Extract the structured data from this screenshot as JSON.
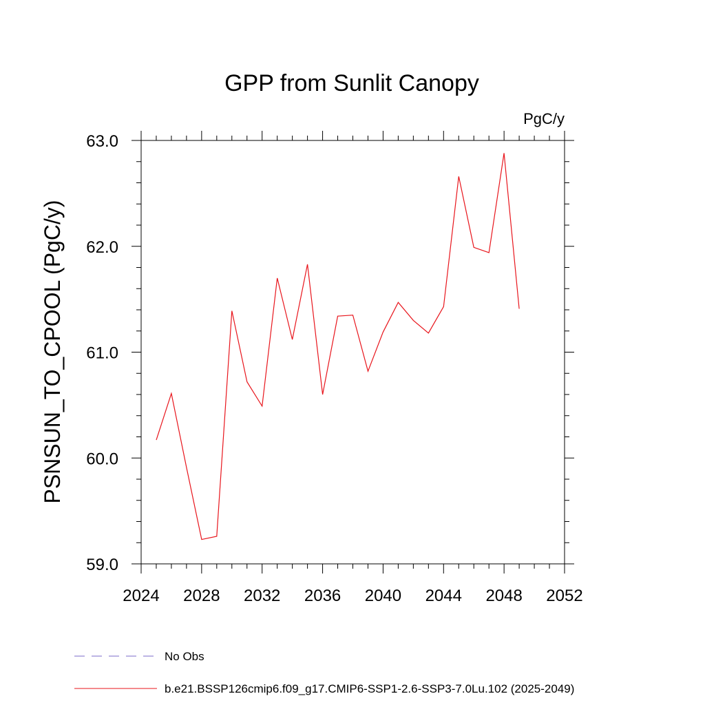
{
  "chart_data": {
    "type": "line",
    "title": "GPP from Sunlit Canopy",
    "units": "PgC/y",
    "ylabel": "PSNSUN_TO_CPOOL  (PgC/y)",
    "xlabel": "",
    "xlim": [
      2024,
      2052
    ],
    "ylim": [
      59.0,
      63.0
    ],
    "x_ticks": [
      "2024",
      "2028",
      "2032",
      "2036",
      "2040",
      "2044",
      "2048",
      "2052"
    ],
    "y_ticks": [
      "59.0",
      "60.0",
      "61.0",
      "62.0",
      "63.0"
    ],
    "grid": false,
    "legend_position": "bottom",
    "legend": [
      {
        "label": "No Obs",
        "color": "#7b68c8",
        "style": "dashed"
      },
      {
        "label": "b.e21.BSSP126cmip6.f09_g17.CMIP6-SSP1-2.6-SSP3-7.0Lu.102 (2025-2049)",
        "color": "#e8141b",
        "style": "solid"
      }
    ],
    "series": [
      {
        "color": "#e8141b",
        "x": [
          2025,
          2026,
          2027,
          2028,
          2029,
          2030,
          2031,
          2032,
          2033,
          2034,
          2035,
          2036,
          2037,
          2038,
          2039,
          2040,
          2041,
          2042,
          2043,
          2044,
          2045,
          2046,
          2047,
          2048,
          2049
        ],
        "y": [
          60.17,
          60.61,
          59.91,
          59.23,
          59.26,
          61.39,
          60.72,
          60.49,
          61.7,
          61.12,
          61.83,
          60.6,
          61.34,
          61.35,
          60.82,
          61.19,
          61.47,
          61.3,
          61.18,
          61.43,
          62.66,
          61.99,
          61.94,
          62.88,
          61.41
        ]
      }
    ]
  }
}
